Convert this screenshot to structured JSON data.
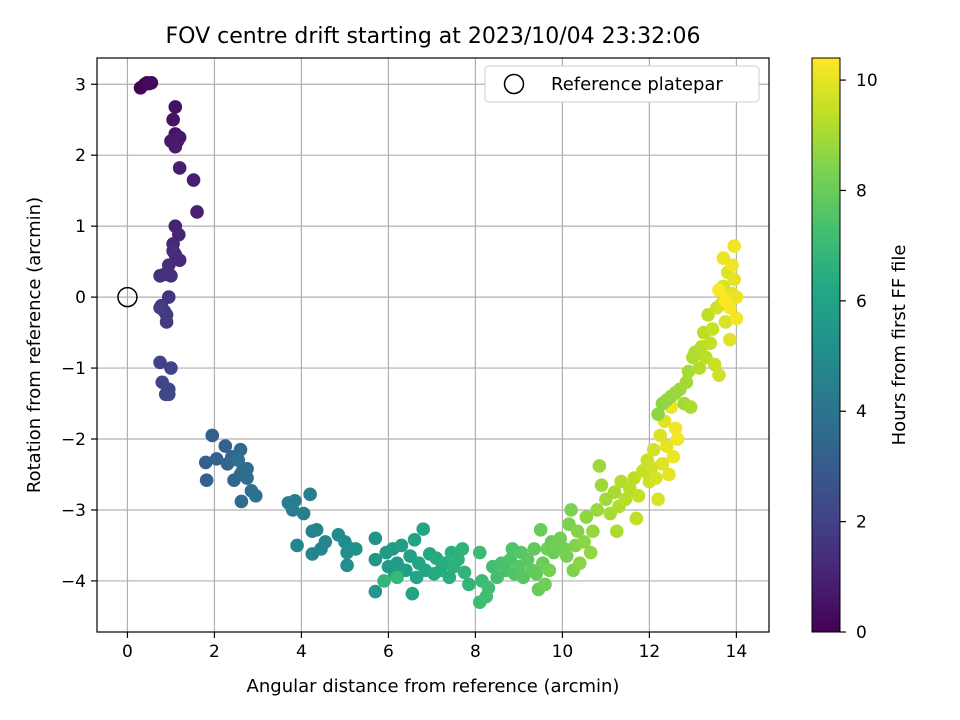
{
  "chart_data": {
    "type": "scatter",
    "title": "FOV centre drift starting at 2023/10/04 23:32:06",
    "xlabel": "Angular distance from reference (arcmin)",
    "ylabel": "Rotation from reference (arcmin)",
    "xlim": [
      -0.7,
      14.75
    ],
    "ylim": [
      -4.72,
      3.37
    ],
    "xticks": [
      0,
      2,
      4,
      6,
      8,
      10,
      12,
      14
    ],
    "yticks": [
      -4,
      -3,
      -2,
      -1,
      0,
      1,
      2,
      3
    ],
    "grid": true,
    "legend": {
      "position": "top-right",
      "entries": [
        {
          "label": "Reference platepar",
          "marker": "open-circle"
        }
      ]
    },
    "reference_point": {
      "x": 0,
      "y": 0
    },
    "colorbar": {
      "label": "Hours from first FF file",
      "min": 0,
      "max": 10.4,
      "ticks": [
        0,
        2,
        4,
        6,
        8,
        10
      ],
      "colormap": "viridis"
    },
    "points": [
      [
        0.3,
        2.95,
        0.05
      ],
      [
        0.4,
        3.0,
        0.1
      ],
      [
        0.45,
        3.02,
        0.15
      ],
      [
        0.55,
        3.02,
        0.2
      ],
      [
        0.5,
        3.01,
        0.25
      ],
      [
        1.1,
        2.68,
        0.45
      ],
      [
        1.05,
        2.5,
        0.5
      ],
      [
        1.1,
        2.3,
        0.55
      ],
      [
        1.15,
        2.2,
        0.6
      ],
      [
        1.05,
        2.2,
        0.65
      ],
      [
        1.2,
        2.25,
        0.7
      ],
      [
        1.0,
        2.2,
        0.75
      ],
      [
        1.1,
        2.12,
        0.8
      ],
      [
        1.2,
        1.82,
        0.85
      ],
      [
        1.52,
        1.65,
        0.9
      ],
      [
        1.6,
        1.2,
        0.95
      ],
      [
        1.1,
        1.0,
        1.05
      ],
      [
        1.18,
        0.88,
        1.1
      ],
      [
        1.05,
        0.75,
        1.15
      ],
      [
        1.1,
        0.6,
        1.2
      ],
      [
        1.2,
        0.52,
        1.25
      ],
      [
        1.05,
        0.65,
        1.3
      ],
      [
        0.95,
        0.45,
        1.35
      ],
      [
        1.0,
        0.3,
        1.4
      ],
      [
        0.85,
        0.32,
        1.45
      ],
      [
        0.75,
        0.3,
        1.5
      ],
      [
        0.95,
        0.0,
        1.6
      ],
      [
        0.78,
        -0.12,
        1.65
      ],
      [
        0.85,
        -0.2,
        1.7
      ],
      [
        0.9,
        -0.25,
        1.75
      ],
      [
        0.9,
        -0.35,
        1.8
      ],
      [
        0.75,
        -0.15,
        1.85
      ],
      [
        0.75,
        -0.92,
        2.0
      ],
      [
        1.0,
        -1.0,
        2.05
      ],
      [
        0.8,
        -1.2,
        2.1
      ],
      [
        0.88,
        -1.37,
        2.15
      ],
      [
        0.95,
        -1.3,
        2.2
      ],
      [
        0.95,
        -1.37,
        2.25
      ],
      [
        1.95,
        -1.95,
        3.1
      ],
      [
        1.8,
        -2.33,
        3.15
      ],
      [
        1.82,
        -2.58,
        3.2
      ],
      [
        2.05,
        -2.28,
        3.25
      ],
      [
        2.25,
        -2.1,
        3.3
      ],
      [
        2.3,
        -2.35,
        3.35
      ],
      [
        2.4,
        -2.25,
        3.4
      ],
      [
        2.45,
        -2.58,
        3.45
      ],
      [
        2.6,
        -2.5,
        3.5
      ],
      [
        2.6,
        -2.15,
        3.55
      ],
      [
        2.65,
        -2.45,
        3.6
      ],
      [
        2.62,
        -2.88,
        3.65
      ],
      [
        2.75,
        -2.55,
        3.7
      ],
      [
        2.75,
        -2.42,
        3.75
      ],
      [
        2.85,
        -2.73,
        3.8
      ],
      [
        2.95,
        -2.8,
        3.85
      ],
      [
        2.55,
        -2.3,
        3.9
      ],
      [
        3.7,
        -2.9,
        4.3
      ],
      [
        3.85,
        -2.87,
        4.35
      ],
      [
        3.8,
        -3.0,
        4.4
      ],
      [
        4.05,
        -3.05,
        4.45
      ],
      [
        4.2,
        -2.78,
        4.5
      ],
      [
        4.25,
        -3.3,
        4.55
      ],
      [
        4.35,
        -3.28,
        4.6
      ],
      [
        4.25,
        -3.62,
        4.65
      ],
      [
        4.45,
        -3.55,
        4.7
      ],
      [
        4.55,
        -3.45,
        4.75
      ],
      [
        3.9,
        -3.5,
        4.8
      ],
      [
        4.85,
        -3.35,
        4.95
      ],
      [
        5.0,
        -3.45,
        5.0
      ],
      [
        5.05,
        -3.6,
        5.05
      ],
      [
        5.05,
        -3.78,
        5.1
      ],
      [
        5.15,
        -3.55,
        5.15
      ],
      [
        5.25,
        -3.55,
        5.2
      ],
      [
        5.7,
        -3.4,
        5.4
      ],
      [
        5.7,
        -3.7,
        5.45
      ],
      [
        5.7,
        -4.15,
        5.5
      ],
      [
        5.95,
        -3.6,
        5.55
      ],
      [
        6.0,
        -3.8,
        5.6
      ],
      [
        6.1,
        -3.55,
        5.65
      ],
      [
        6.15,
        -3.9,
        5.7
      ],
      [
        6.2,
        -3.75,
        5.75
      ],
      [
        6.3,
        -3.5,
        5.8
      ],
      [
        6.4,
        -3.85,
        5.85
      ],
      [
        6.5,
        -3.65,
        5.9
      ],
      [
        6.6,
        -3.42,
        5.95
      ],
      [
        6.55,
        -4.18,
        6.0
      ],
      [
        6.65,
        -3.95,
        6.05
      ],
      [
        6.7,
        -3.75,
        6.1
      ],
      [
        6.8,
        -3.27,
        6.15
      ],
      [
        6.85,
        -3.85,
        6.2
      ],
      [
        6.95,
        -3.62,
        6.25
      ],
      [
        7.05,
        -3.9,
        6.3
      ],
      [
        7.1,
        -3.68,
        6.35
      ],
      [
        7.2,
        -3.85,
        6.4
      ],
      [
        7.3,
        -3.75,
        6.45
      ],
      [
        7.4,
        -3.95,
        6.5
      ],
      [
        7.45,
        -3.6,
        6.55
      ],
      [
        7.5,
        -3.8,
        6.6
      ],
      [
        7.6,
        -3.7,
        6.65
      ],
      [
        7.7,
        -3.55,
        6.7
      ],
      [
        7.75,
        -3.88,
        6.75
      ],
      [
        7.85,
        -4.05,
        6.8
      ],
      [
        5.9,
        -4.0,
        6.85
      ],
      [
        6.2,
        -3.95,
        6.9
      ],
      [
        8.1,
        -3.6,
        7.0
      ],
      [
        8.15,
        -4.0,
        7.05
      ],
      [
        8.1,
        -4.3,
        7.1
      ],
      [
        8.25,
        -4.22,
        7.15
      ],
      [
        8.3,
        -4.1,
        7.2
      ],
      [
        8.4,
        -3.8,
        7.25
      ],
      [
        8.5,
        -3.95,
        7.3
      ],
      [
        8.6,
        -3.75,
        7.35
      ],
      [
        8.7,
        -3.85,
        7.4
      ],
      [
        8.8,
        -3.7,
        7.45
      ],
      [
        8.85,
        -3.55,
        7.5
      ],
      [
        8.9,
        -3.9,
        7.55
      ],
      [
        9.0,
        -3.8,
        7.6
      ],
      [
        9.05,
        -3.6,
        7.65
      ],
      [
        9.1,
        -3.95,
        7.7
      ],
      [
        9.2,
        -3.7,
        7.75
      ],
      [
        9.3,
        -3.85,
        7.8
      ],
      [
        9.35,
        -3.55,
        7.85
      ],
      [
        9.4,
        -3.9,
        7.9
      ],
      [
        9.45,
        -4.12,
        7.95
      ],
      [
        9.5,
        -3.28,
        8.0
      ],
      [
        9.55,
        -3.75,
        8.05
      ],
      [
        9.6,
        -4.05,
        8.1
      ],
      [
        9.65,
        -3.55,
        8.15
      ],
      [
        9.7,
        -3.85,
        8.2
      ],
      [
        9.75,
        -3.45,
        8.0
      ],
      [
        9.8,
        -3.6,
        8.05
      ],
      [
        9.85,
        -3.5,
        8.1
      ],
      [
        9.95,
        -3.4,
        8.15
      ],
      [
        10.05,
        -3.55,
        8.2
      ],
      [
        10.1,
        -3.65,
        8.25
      ],
      [
        10.15,
        -3.2,
        8.3
      ],
      [
        10.2,
        -3.0,
        8.35
      ],
      [
        10.25,
        -3.85,
        8.4
      ],
      [
        10.3,
        -3.5,
        8.45
      ],
      [
        10.35,
        -3.3,
        8.5
      ],
      [
        10.4,
        -3.75,
        8.55
      ],
      [
        10.5,
        -3.45,
        8.6
      ],
      [
        10.55,
        -3.1,
        8.65
      ],
      [
        10.65,
        -3.6,
        8.7
      ],
      [
        10.7,
        -3.3,
        8.75
      ],
      [
        10.8,
        -3.0,
        8.8
      ],
      [
        10.85,
        -2.38,
        8.85
      ],
      [
        10.9,
        -2.65,
        8.9
      ],
      [
        11.0,
        -2.85,
        8.95
      ],
      [
        11.1,
        -3.05,
        9.0
      ],
      [
        11.2,
        -2.75,
        9.05
      ],
      [
        11.25,
        -3.3,
        9.1
      ],
      [
        11.3,
        -2.95,
        9.15
      ],
      [
        11.35,
        -2.6,
        9.2
      ],
      [
        11.45,
        -2.85,
        9.25
      ],
      [
        11.55,
        -2.7,
        9.3
      ],
      [
        11.65,
        -2.55,
        9.35
      ],
      [
        11.7,
        -3.12,
        9.4
      ],
      [
        11.75,
        -2.8,
        9.45
      ],
      [
        11.85,
        -2.45,
        9.5
      ],
      [
        11.95,
        -2.3,
        9.55
      ],
      [
        12.0,
        -2.6,
        9.6
      ],
      [
        12.05,
        -2.4,
        9.65
      ],
      [
        12.1,
        -2.15,
        9.7
      ],
      [
        12.15,
        -2.55,
        9.75
      ],
      [
        12.2,
        -2.85,
        9.8
      ],
      [
        12.25,
        -1.95,
        9.85
      ],
      [
        12.3,
        -2.35,
        9.9
      ],
      [
        12.35,
        -1.75,
        9.95
      ],
      [
        12.4,
        -2.1,
        10.0
      ],
      [
        12.45,
        -2.5,
        10.05
      ],
      [
        12.5,
        -1.55,
        10.1
      ],
      [
        12.55,
        -2.25,
        10.15
      ],
      [
        12.6,
        -1.85,
        10.2
      ],
      [
        12.65,
        -2.0,
        10.25
      ],
      [
        12.2,
        -1.65,
        8.6
      ],
      [
        12.3,
        -1.5,
        8.65
      ],
      [
        12.4,
        -1.45,
        8.7
      ],
      [
        12.5,
        -1.4,
        8.75
      ],
      [
        12.6,
        -1.35,
        8.8
      ],
      [
        12.7,
        -1.3,
        8.85
      ],
      [
        12.8,
        -1.5,
        8.9
      ],
      [
        12.85,
        -1.2,
        8.95
      ],
      [
        12.9,
        -1.05,
        9.0
      ],
      [
        12.95,
        -1.55,
        9.05
      ],
      [
        13.0,
        -0.85,
        9.1
      ],
      [
        13.05,
        -0.78,
        9.15
      ],
      [
        13.15,
        -1.0,
        9.2
      ],
      [
        13.2,
        -0.7,
        9.25
      ],
      [
        13.25,
        -0.5,
        9.3
      ],
      [
        13.3,
        -0.85,
        9.35
      ],
      [
        13.35,
        -0.25,
        9.4
      ],
      [
        13.4,
        -0.65,
        9.45
      ],
      [
        13.45,
        -0.45,
        9.5
      ],
      [
        13.5,
        -0.95,
        9.55
      ],
      [
        13.55,
        -0.15,
        9.6
      ],
      [
        13.6,
        -1.1,
        9.65
      ],
      [
        13.65,
        -0.1,
        9.7
      ],
      [
        13.7,
        0.15,
        9.75
      ],
      [
        13.75,
        -0.35,
        9.8
      ],
      [
        13.8,
        0.35,
        9.85
      ],
      [
        13.85,
        -0.6,
        9.9
      ],
      [
        13.9,
        0.05,
        9.95
      ],
      [
        13.95,
        0.25,
        10.0
      ],
      [
        14.0,
        0.0,
        10.05
      ],
      [
        13.7,
        0.55,
        10.1
      ],
      [
        13.9,
        0.45,
        10.15
      ],
      [
        13.95,
        0.72,
        10.2
      ],
      [
        14.0,
        -0.3,
        10.25
      ],
      [
        13.85,
        -0.15,
        10.3
      ],
      [
        13.6,
        0.1,
        10.35
      ],
      [
        13.75,
        -0.05,
        10.38
      ]
    ]
  }
}
